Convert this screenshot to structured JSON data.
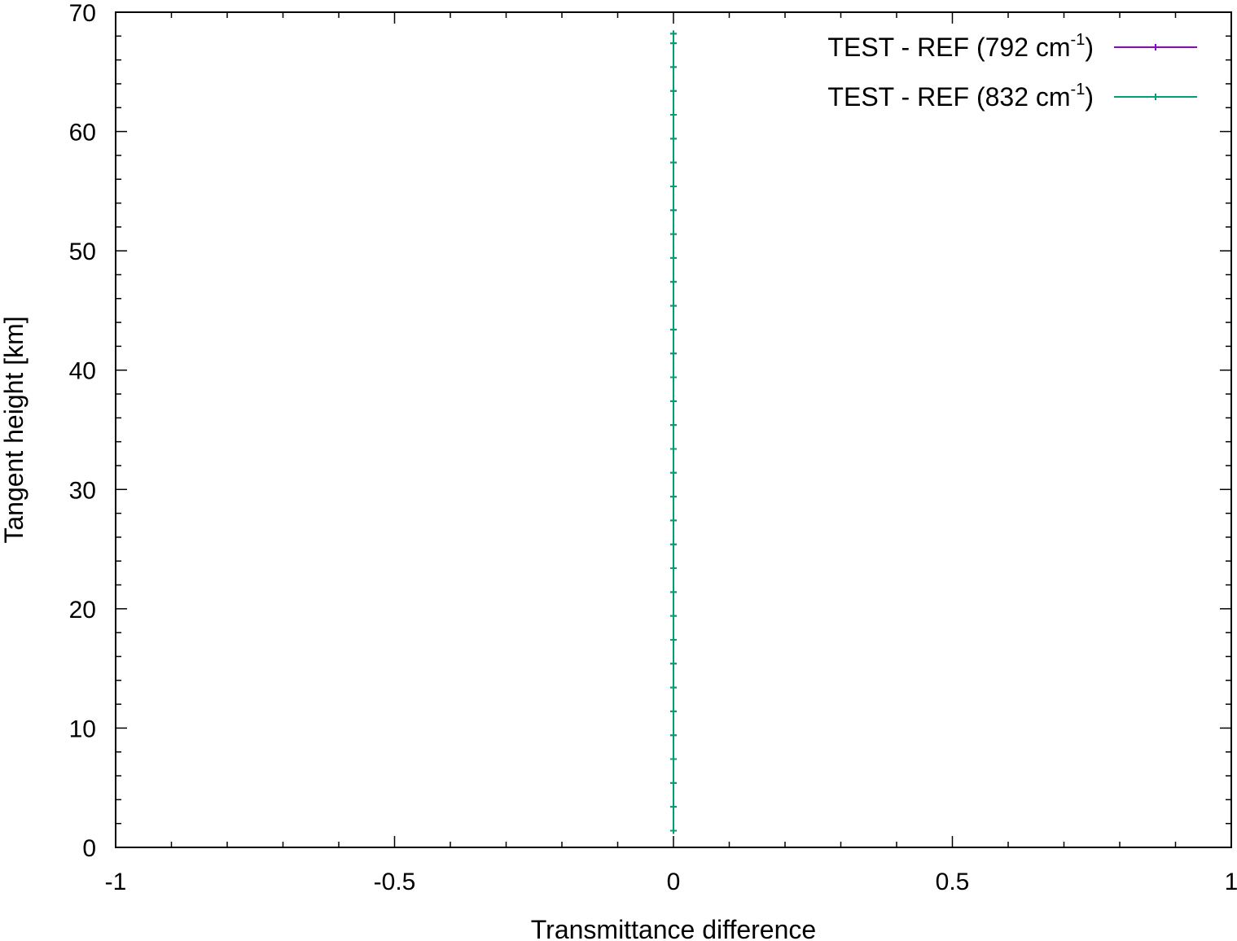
{
  "chart_data": {
    "type": "line",
    "title": "",
    "xlabel": "Transmittance difference",
    "ylabel": "Tangent height [km]",
    "xlim": [
      -1,
      1
    ],
    "ylim": [
      0,
      70
    ],
    "x_ticks": [
      -1,
      -0.5,
      0,
      0.5,
      1
    ],
    "y_ticks": [
      0,
      10,
      20,
      30,
      40,
      50,
      60,
      70
    ],
    "x_minor_step": 0.1,
    "y_minor_step": 2,
    "grid": false,
    "legend": "top-right",
    "series": [
      {
        "name": "TEST - REF (792 cm-1)",
        "name_parts": {
          "base": "TEST - REF (792 cm",
          "sup": "-1",
          "close": ")"
        },
        "color": "#9400d3",
        "marker": "plus",
        "points": [
          [
            0,
            1.4
          ],
          [
            0,
            3.4
          ],
          [
            0,
            5.4
          ],
          [
            0,
            7.4
          ],
          [
            0,
            9.4
          ],
          [
            0,
            11.4
          ],
          [
            0,
            13.4
          ],
          [
            0,
            15.4
          ],
          [
            0,
            17.4
          ],
          [
            0,
            19.4
          ],
          [
            0,
            21.4
          ],
          [
            0,
            23.4
          ],
          [
            0,
            25.4
          ],
          [
            0,
            27.4
          ],
          [
            0,
            29.4
          ],
          [
            0,
            31.4
          ],
          [
            0,
            33.4
          ],
          [
            0,
            35.4
          ],
          [
            0,
            37.4
          ],
          [
            0,
            39.4
          ],
          [
            0,
            41.4
          ],
          [
            0,
            43.4
          ],
          [
            0,
            45.4
          ],
          [
            0,
            47.4
          ],
          [
            0,
            49.4
          ],
          [
            0,
            51.4
          ],
          [
            0,
            53.4
          ],
          [
            0,
            55.4
          ],
          [
            0,
            57.4
          ],
          [
            0,
            59.4
          ],
          [
            0,
            61.4
          ],
          [
            0,
            63.4
          ],
          [
            0,
            65.4
          ],
          [
            0,
            67.4
          ],
          [
            0,
            68.2
          ]
        ]
      },
      {
        "name": "TEST - REF (832 cm-1)",
        "name_parts": {
          "base": "TEST - REF (832 cm",
          "sup": "-1",
          "close": ")"
        },
        "color": "#009e73",
        "marker": "plus",
        "points": [
          [
            0,
            1.4
          ],
          [
            0,
            3.4
          ],
          [
            0,
            5.4
          ],
          [
            0,
            7.4
          ],
          [
            0,
            9.4
          ],
          [
            0,
            11.4
          ],
          [
            0,
            13.4
          ],
          [
            0,
            15.4
          ],
          [
            0,
            17.4
          ],
          [
            0,
            19.4
          ],
          [
            0,
            21.4
          ],
          [
            0,
            23.4
          ],
          [
            0,
            25.4
          ],
          [
            0,
            27.4
          ],
          [
            0,
            29.4
          ],
          [
            0,
            31.4
          ],
          [
            0,
            33.4
          ],
          [
            0,
            35.4
          ],
          [
            0,
            37.4
          ],
          [
            0,
            39.4
          ],
          [
            0,
            41.4
          ],
          [
            0,
            43.4
          ],
          [
            0,
            45.4
          ],
          [
            0,
            47.4
          ],
          [
            0,
            49.4
          ],
          [
            0,
            51.4
          ],
          [
            0,
            53.4
          ],
          [
            0,
            55.4
          ],
          [
            0,
            57.4
          ],
          [
            0,
            59.4
          ],
          [
            0,
            61.4
          ],
          [
            0,
            63.4
          ],
          [
            0,
            65.4
          ],
          [
            0,
            67.4
          ],
          [
            0,
            68.2
          ]
        ]
      }
    ]
  }
}
